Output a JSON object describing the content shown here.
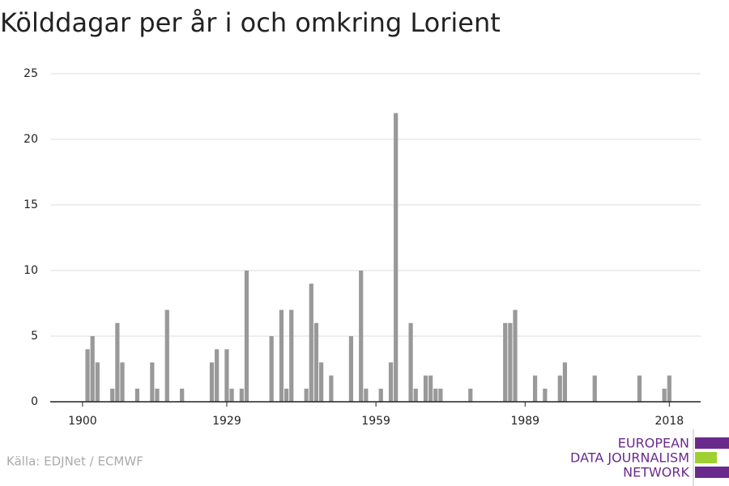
{
  "chart_data": {
    "type": "bar",
    "title": "Kölddagar per år i och omkring Lorient",
    "x": [
      1900,
      1901,
      1902,
      1903,
      1904,
      1905,
      1906,
      1907,
      1908,
      1909,
      1910,
      1911,
      1912,
      1913,
      1914,
      1915,
      1916,
      1917,
      1918,
      1919,
      1920,
      1921,
      1922,
      1923,
      1924,
      1925,
      1926,
      1927,
      1928,
      1929,
      1930,
      1931,
      1932,
      1933,
      1934,
      1935,
      1936,
      1937,
      1938,
      1939,
      1940,
      1941,
      1942,
      1943,
      1944,
      1945,
      1946,
      1947,
      1948,
      1949,
      1950,
      1951,
      1952,
      1953,
      1954,
      1955,
      1956,
      1957,
      1958,
      1959,
      1960,
      1961,
      1962,
      1963,
      1964,
      1965,
      1966,
      1967,
      1968,
      1969,
      1970,
      1971,
      1972,
      1973,
      1974,
      1975,
      1976,
      1977,
      1978,
      1979,
      1980,
      1981,
      1982,
      1983,
      1984,
      1985,
      1986,
      1987,
      1988,
      1989,
      1990,
      1991,
      1992,
      1993,
      1994,
      1995,
      1996,
      1997,
      1998,
      1999,
      2000,
      2001,
      2002,
      2003,
      2004,
      2005,
      2006,
      2007,
      2008,
      2009,
      2010,
      2011,
      2012,
      2013,
      2014,
      2015,
      2016,
      2017,
      2018
    ],
    "values": [
      0,
      4,
      5,
      3,
      0,
      0,
      1,
      6,
      3,
      0,
      0,
      1,
      0,
      0,
      3,
      1,
      0,
      7,
      0,
      0,
      1,
      0,
      0,
      0,
      0,
      0,
      3,
      4,
      0,
      4,
      1,
      0,
      1,
      10,
      0,
      0,
      0,
      0,
      5,
      0,
      7,
      1,
      7,
      0,
      0,
      1,
      9,
      6,
      3,
      0,
      2,
      0,
      0,
      0,
      5,
      0,
      10,
      1,
      0,
      0,
      1,
      0,
      3,
      22,
      0,
      0,
      6,
      1,
      0,
      2,
      2,
      1,
      1,
      0,
      0,
      0,
      0,
      0,
      1,
      0,
      0,
      0,
      0,
      0,
      0,
      6,
      6,
      7,
      0,
      0,
      0,
      2,
      0,
      1,
      0,
      0,
      2,
      3,
      0,
      0,
      0,
      0,
      0,
      2,
      0,
      0,
      0,
      0,
      0,
      0,
      0,
      0,
      2,
      0,
      0,
      0,
      0,
      1,
      2
    ],
    "color": "#999999",
    "xlim": [
      1893.5,
      2024.3
    ],
    "xticks": [
      1900,
      1929,
      1959,
      1989,
      2018
    ],
    "ylim": [
      0,
      25
    ],
    "yticks": [
      0,
      5,
      10,
      15,
      20,
      25
    ],
    "grid": true,
    "source": "Källa: EDJNet / ECMWF"
  },
  "logo": [
    "EUROPEAN",
    "DATA JOURNALISM",
    "NETWORK"
  ]
}
